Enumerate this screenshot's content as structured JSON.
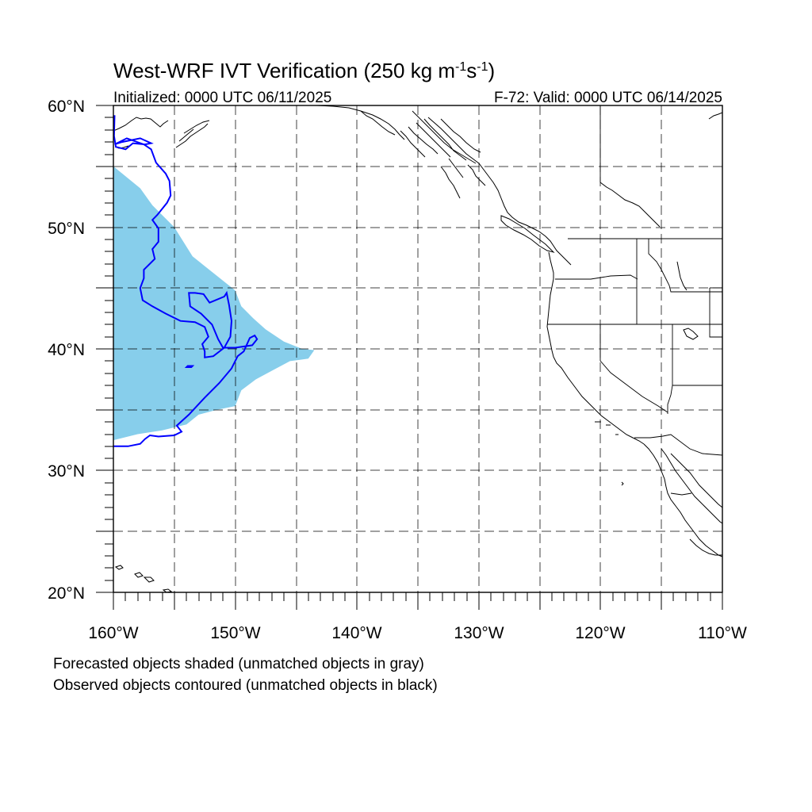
{
  "title": "West-WRF IVT Verification (250 kg m⁻¹s⁻¹)",
  "title_parts": {
    "main": "West-WRF IVT Verification (250 kg m",
    "exp1": "-1",
    "mid": "s",
    "exp2": "-1",
    "end": ")"
  },
  "initialized": "Initialized: 0000 UTC 06/11/2025",
  "valid": "F-72: Valid: 0000 UTC 06/14/2025",
  "footnote_1": "Forecasted objects shaded (unmatched objects in gray)",
  "footnote_2": "Observed objects contoured (unmatched objects in black)",
  "lat_labels": [
    "60°N",
    "50°N",
    "40°N",
    "30°N",
    "20°N"
  ],
  "lon_labels": [
    "160°W",
    "150°W",
    "140°W",
    "130°W",
    "120°W",
    "110°W"
  ],
  "extent": {
    "lon_min": -160,
    "lon_max": -110,
    "lat_min": 20,
    "lat_max": 60
  },
  "colors": {
    "forecast_fill": "#87ceeb",
    "observed_contour": "#0000ff",
    "coastline": "#000000"
  },
  "forecast_object": {
    "label": "forecast IVT object (matched)",
    "points": [
      [
        -160,
        55
      ],
      [
        -157.8,
        53.2
      ],
      [
        -156.8,
        51.8
      ],
      [
        -155,
        50
      ],
      [
        -153.5,
        47.6
      ],
      [
        -151.5,
        46
      ],
      [
        -150,
        44.8
      ],
      [
        -149.5,
        43.5
      ],
      [
        -148.5,
        42.5
      ],
      [
        -147.5,
        41.6
      ],
      [
        -146,
        40.6
      ],
      [
        -144.5,
        40
      ],
      [
        -143.5,
        39.9
      ],
      [
        -144,
        39.2
      ],
      [
        -145.5,
        39
      ],
      [
        -147,
        38.2
      ],
      [
        -148.3,
        37.5
      ],
      [
        -149.5,
        36.6
      ],
      [
        -150,
        35.3
      ],
      [
        -151.5,
        35
      ],
      [
        -153,
        34.6
      ],
      [
        -154,
        33.8
      ],
      [
        -156,
        33.3
      ],
      [
        -158,
        33
      ],
      [
        -160,
        32.5
      ]
    ]
  },
  "observed_object": {
    "label": "observed IVT object (matched)",
    "main": [
      [
        -159.9,
        59.2
      ],
      [
        -159.95,
        57.5
      ],
      [
        -159.8,
        56.6
      ],
      [
        -159,
        56.4
      ],
      [
        -158.4,
        56.9
      ],
      [
        -157.4,
        56.8
      ],
      [
        -156.9,
        56.9
      ],
      [
        -157.8,
        57.3
      ],
      [
        -159.3,
        57
      ],
      [
        -159.9,
        56.8
      ],
      [
        -158.9,
        57.3
      ],
      [
        -157.5,
        56.8
      ],
      [
        -156.9,
        56.4
      ],
      [
        -156.5,
        55.3
      ],
      [
        -155.7,
        54.4
      ],
      [
        -155.4,
        53.8
      ],
      [
        -155.3,
        52.6
      ],
      [
        -155.6,
        52
      ],
      [
        -156.4,
        51
      ],
      [
        -156.8,
        50.6
      ],
      [
        -156.3,
        49.9
      ],
      [
        -156.3,
        48.8
      ],
      [
        -156.8,
        48.2
      ],
      [
        -156.6,
        47.4
      ],
      [
        -157.5,
        46.5
      ],
      [
        -157.5,
        45.8
      ],
      [
        -157.8,
        45
      ],
      [
        -157.6,
        44
      ],
      [
        -156.8,
        43.5
      ],
      [
        -155.7,
        42.9
      ],
      [
        -154.5,
        42.3
      ],
      [
        -153.3,
        42.2
      ],
      [
        -152.5,
        41.8
      ],
      [
        -152.2,
        41
      ],
      [
        -152.7,
        40.4
      ],
      [
        -152.5,
        39.8
      ],
      [
        -152.5,
        39.3
      ],
      [
        -151.8,
        39.4
      ],
      [
        -150.9,
        40.1
      ],
      [
        -150.4,
        41
      ],
      [
        -150.3,
        42.3
      ],
      [
        -150.5,
        43.6
      ],
      [
        -150.7,
        44.6
      ],
      [
        -150.9,
        44.3
      ],
      [
        -152.1,
        43.8
      ],
      [
        -152.6,
        44.5
      ],
      [
        -153.3,
        44.6
      ],
      [
        -153.8,
        44.6
      ],
      [
        -153.7,
        43.5
      ],
      [
        -152.8,
        42.9
      ],
      [
        -151.9,
        42
      ],
      [
        -151.4,
        40.8
      ],
      [
        -151,
        40.1
      ],
      [
        -150,
        40.1
      ],
      [
        -148.6,
        40.3
      ],
      [
        -148.2,
        40.8
      ],
      [
        -148.4,
        41.1
      ],
      [
        -148.8,
        40.9
      ],
      [
        -149.3,
        39.8
      ],
      [
        -149.8,
        39.4
      ],
      [
        -150.3,
        38.4
      ],
      [
        -151.3,
        37.2
      ],
      [
        -152.5,
        36
      ],
      [
        -153.8,
        34.6
      ],
      [
        -154.8,
        33.7
      ],
      [
        -154.4,
        33.2
      ],
      [
        -155,
        32.9
      ],
      [
        -156.3,
        32.8
      ],
      [
        -157,
        32.9
      ],
      [
        -157.4,
        32.6
      ],
      [
        -157.8,
        32.2
      ],
      [
        -158.8,
        32
      ],
      [
        -160,
        32
      ]
    ],
    "ring": [
      [
        -153.9,
        38.6
      ],
      [
        -153.5,
        38.6
      ],
      [
        -153.6,
        38.5
      ],
      [
        -154,
        38.5
      ],
      [
        -153.9,
        38.6
      ]
    ]
  }
}
